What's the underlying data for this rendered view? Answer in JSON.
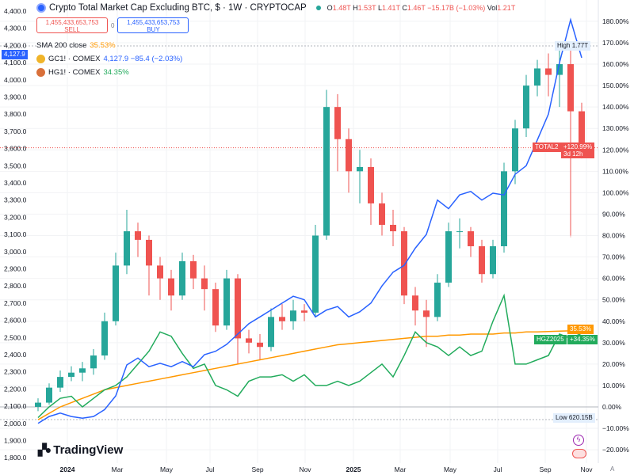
{
  "header": {
    "title": "Crypto Total Market Cap Excluding BTC, $ · 1W · CRYPTOCAP",
    "o_label": "O",
    "o": "1.48T",
    "h_label": "H",
    "h": "1.53T",
    "l_label": "L",
    "l": "1.41T",
    "c_label": "C",
    "c": "1.46T",
    "change": "−15.17B (−1.03%)",
    "vol_label": "Vol",
    "vol": "1.21T"
  },
  "trade": {
    "sell_price": "1,455,433,653,753",
    "sell_label": "SELL",
    "spread": "0",
    "buy_price": "1,455,433,653,753",
    "buy_label": "BUY"
  },
  "indicators": [
    {
      "name": "SMA 200 close",
      "value": "35.53%",
      "color": "#ff9800"
    },
    {
      "name": "GC1! · COMEX",
      "value": "4,127.9 −85.4 (−2.03%)",
      "color": "#2962ff"
    },
    {
      "name": "HG1! · COMEX",
      "value": "34.35%",
      "color": "#22ab5c"
    }
  ],
  "tags": {
    "high_label": "High",
    "high_value": "1.77T",
    "total2_label": "TOTAL2",
    "total2_value": "+120.99%",
    "total2_countdown": "3d 12h",
    "sma_value": "35.53%",
    "hg_label": "HGZ2025",
    "hg_value": "+34.35%",
    "low_label": "Low",
    "low_value": "620.15B",
    "gold_value": "4,127.9"
  },
  "logo": "TradingView",
  "colors": {
    "up": "#26a69a",
    "down": "#ef5350",
    "gold": "#2962ff",
    "copper": "#22ab5c",
    "sma": "#ff9800"
  },
  "chart_data": {
    "type": "candlestick",
    "interval_shown": "1W",
    "x_start": "2023-11-06",
    "point_step": "2W",
    "left_axis": {
      "ticks": [
        "4,400.0",
        "4,300.0",
        "4,200.0",
        "4,100.0",
        "4,000.0",
        "3,900.0",
        "3,800.0",
        "3,700.0",
        "3,600.0",
        "3,500.0",
        "3,400.0",
        "3,300.0",
        "3,200.0",
        "3,100.0",
        "3,000.0",
        "2,900.0",
        "2,800.0",
        "2,700.0",
        "2,600.0",
        "2,500.0",
        "2,400.0",
        "2,300.0",
        "2,200.0",
        "2,100.0",
        "2,000.0",
        "1,900.0",
        "1,800.0"
      ],
      "range": [
        1800,
        4400
      ]
    },
    "right_axis": {
      "ticks": [
        "180.00%",
        "170.00%",
        "160.00%",
        "150.00%",
        "140.00%",
        "130.00%",
        "120.00%",
        "110.00%",
        "100.00%",
        "90.00%",
        "80.00%",
        "70.00%",
        "60.00%",
        "50.00%",
        "40.00%",
        "30.00%",
        "20.00%",
        "10.00%",
        "0.00%",
        "−10.00%",
        "−20.00%"
      ],
      "range": [
        -20,
        180
      ],
      "scale": "percent"
    },
    "x_ticks": [
      "2024",
      "Mar",
      "May",
      "Jul",
      "Sep",
      "Nov",
      "2025",
      "Mar",
      "May",
      "Jul",
      "Sep",
      "Nov"
    ],
    "total2_ohlc_percent": [
      [
        0,
        4,
        -2,
        2
      ],
      [
        2,
        11,
        1,
        9
      ],
      [
        9,
        17,
        7,
        14
      ],
      [
        14,
        19,
        12,
        16
      ],
      [
        16,
        21,
        12,
        18
      ],
      [
        18,
        27,
        15,
        24
      ],
      [
        24,
        44,
        22,
        40
      ],
      [
        40,
        72,
        38,
        66
      ],
      [
        66,
        92,
        62,
        82
      ],
      [
        82,
        86,
        70,
        78
      ],
      [
        78,
        80,
        52,
        66
      ],
      [
        66,
        70,
        50,
        60
      ],
      [
        60,
        64,
        45,
        52
      ],
      [
        52,
        72,
        50,
        68
      ],
      [
        68,
        71,
        55,
        60
      ],
      [
        60,
        66,
        45,
        55
      ],
      [
        55,
        58,
        35,
        38
      ],
      [
        38,
        64,
        36,
        60
      ],
      [
        60,
        62,
        20,
        32
      ],
      [
        32,
        36,
        25,
        30
      ],
      [
        30,
        34,
        22,
        28
      ],
      [
        28,
        46,
        26,
        42
      ],
      [
        42,
        48,
        36,
        40
      ],
      [
        40,
        50,
        36,
        45
      ],
      [
        45,
        48,
        40,
        44
      ],
      [
        44,
        85,
        42,
        80
      ],
      [
        80,
        148,
        78,
        140
      ],
      [
        140,
        146,
        110,
        125
      ],
      [
        125,
        130,
        100,
        110
      ],
      [
        110,
        120,
        95,
        112
      ],
      [
        112,
        116,
        85,
        95
      ],
      [
        95,
        100,
        80,
        85
      ],
      [
        85,
        92,
        75,
        82
      ],
      [
        82,
        84,
        48,
        52
      ],
      [
        52,
        56,
        38,
        45
      ],
      [
        45,
        50,
        28,
        42
      ],
      [
        42,
        62,
        40,
        58
      ],
      [
        58,
        86,
        56,
        82
      ],
      [
        82,
        88,
        74,
        82
      ],
      [
        82,
        84,
        70,
        75
      ],
      [
        75,
        78,
        58,
        62
      ],
      [
        62,
        78,
        60,
        75
      ],
      [
        75,
        114,
        72,
        110
      ],
      [
        110,
        134,
        104,
        130
      ],
      [
        130,
        155,
        126,
        150
      ],
      [
        150,
        162,
        145,
        158
      ],
      [
        158,
        165,
        145,
        155
      ],
      [
        155,
        170,
        140,
        160
      ],
      [
        160,
        168,
        80,
        138
      ],
      [
        138,
        142,
        116,
        121
      ]
    ],
    "gold_price": [
      2000,
      2040,
      2060,
      2040,
      2030,
      2040,
      2080,
      2160,
      2340,
      2380,
      2330,
      2350,
      2330,
      2360,
      2330,
      2400,
      2420,
      2460,
      2520,
      2580,
      2620,
      2660,
      2700,
      2740,
      2720,
      2620,
      2660,
      2680,
      2620,
      2650,
      2700,
      2800,
      2880,
      2920,
      3020,
      3100,
      3300,
      3250,
      3330,
      3350,
      3300,
      3340,
      3330,
      3450,
      3500,
      3650,
      3800,
      4100,
      4350,
      4128
    ],
    "copper_percent": [
      -5,
      0,
      4,
      5,
      0,
      4,
      8,
      10,
      14,
      20,
      26,
      35,
      33,
      25,
      18,
      20,
      10,
      8,
      5,
      12,
      14,
      14,
      15,
      12,
      15,
      10,
      10,
      12,
      10,
      12,
      16,
      20,
      14,
      24,
      35,
      30,
      28,
      24,
      28,
      24,
      26,
      40,
      52,
      20,
      20,
      22,
      24,
      34,
      32,
      34.35
    ],
    "sma200_percent": [
      -6,
      -3,
      0,
      2,
      4,
      6,
      8,
      9,
      10,
      11,
      12,
      13,
      14,
      15,
      16,
      17,
      18,
      19,
      20,
      21,
      22,
      23,
      24,
      25,
      26,
      27,
      28,
      29,
      29.5,
      30,
      30.5,
      31,
      31.5,
      32,
      32.5,
      33,
      33,
      33.5,
      33.5,
      34,
      34,
      34,
      34.5,
      34.5,
      35,
      35,
      35.2,
      35.4,
      35.5,
      35.53
    ]
  }
}
